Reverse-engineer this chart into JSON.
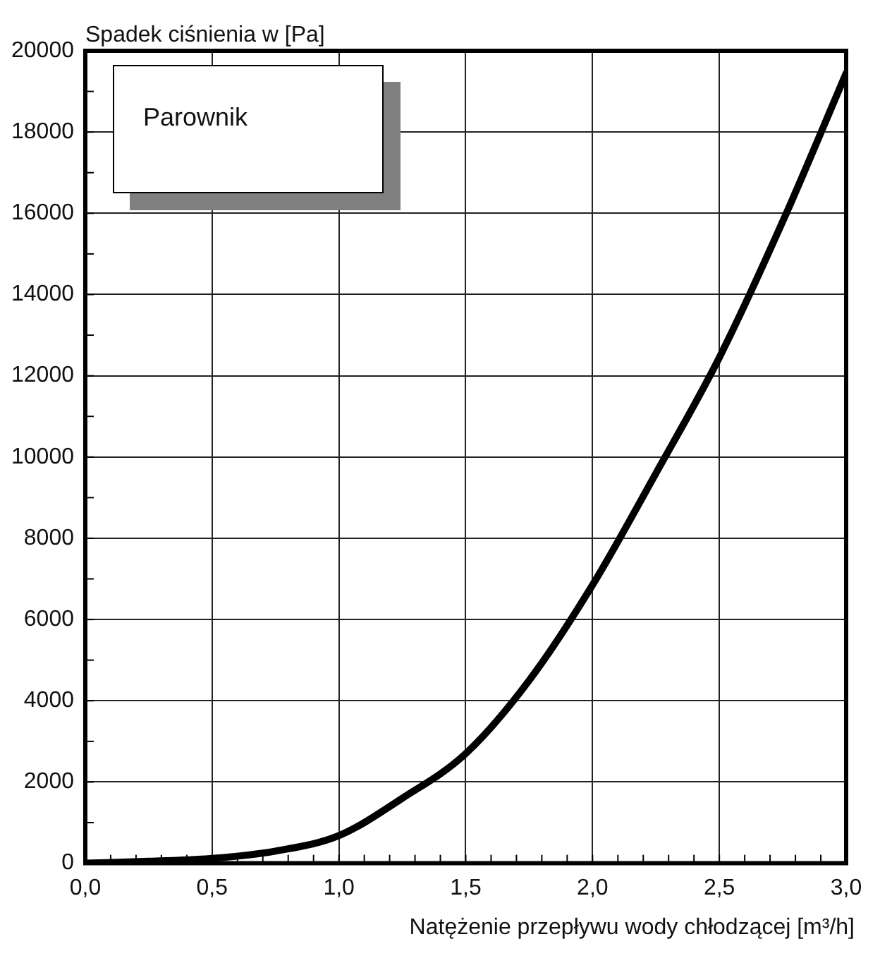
{
  "chart_data": {
    "type": "line",
    "title": "Parownik",
    "ylabel": "Spadek ciśnienia w [Pa]",
    "xlabel": "Natężenie przepływu wody chłodzącej [m³/h]",
    "x": [
      0,
      0.25,
      0.5,
      0.75,
      1.0,
      1.25,
      1.5,
      1.75,
      2.0,
      2.25,
      2.5,
      2.75,
      3.0
    ],
    "series": [
      {
        "color": "#000000",
        "values": [
          0,
          50,
          120,
          300,
          680,
          1600,
          2700,
          4500,
          6850,
          9600,
          12450,
          15800,
          19450
        ]
      }
    ],
    "xlim": [
      0,
      3
    ],
    "ylim": [
      0,
      20000
    ],
    "xticks": [
      {
        "value": 0,
        "label": "0,0"
      },
      {
        "value": 0.1,
        "label": null
      },
      {
        "value": 0.2,
        "label": null
      },
      {
        "value": 0.3,
        "label": null
      },
      {
        "value": 0.4,
        "label": null
      },
      {
        "value": 0.5,
        "label": "0,5"
      },
      {
        "value": 0.6,
        "label": null
      },
      {
        "value": 0.7,
        "label": null
      },
      {
        "value": 0.8,
        "label": null
      },
      {
        "value": 0.9,
        "label": null
      },
      {
        "value": 1,
        "label": "1,0"
      },
      {
        "value": 1.1,
        "label": null
      },
      {
        "value": 1.2,
        "label": null
      },
      {
        "value": 1.3,
        "label": null
      },
      {
        "value": 1.4,
        "label": null
      },
      {
        "value": 1.5,
        "label": "1,5"
      },
      {
        "value": 1.6,
        "label": null
      },
      {
        "value": 1.7,
        "label": null
      },
      {
        "value": 1.8,
        "label": null
      },
      {
        "value": 1.9,
        "label": null
      },
      {
        "value": 2,
        "label": "2,0"
      },
      {
        "value": 2.1,
        "label": null
      },
      {
        "value": 2.2,
        "label": null
      },
      {
        "value": 2.3,
        "label": null
      },
      {
        "value": 2.4,
        "label": null
      },
      {
        "value": 2.5,
        "label": "2,5"
      },
      {
        "value": 2.6,
        "label": null
      },
      {
        "value": 2.7,
        "label": null
      },
      {
        "value": 2.8,
        "label": null
      },
      {
        "value": 2.9,
        "label": null
      },
      {
        "value": 3,
        "label": "3,0"
      }
    ],
    "yticks": [
      0,
      {
        "value": 1000,
        "label": null
      },
      2000,
      {
        "value": 3000,
        "label": null
      },
      4000,
      {
        "value": 5000,
        "label": null
      },
      6000,
      {
        "value": 7000,
        "label": null
      },
      8000,
      {
        "value": 9000,
        "label": null
      },
      10000,
      {
        "value": 11000,
        "label": null
      },
      12000,
      {
        "value": 13000,
        "label": null
      },
      14000,
      {
        "value": 15000,
        "label": null
      },
      16000,
      {
        "value": 17000,
        "label": null
      },
      18000,
      {
        "value": 19000,
        "label": null
      },
      20000
    ],
    "grid": true,
    "marker": "none",
    "line_style": "solid",
    "legend": false
  }
}
